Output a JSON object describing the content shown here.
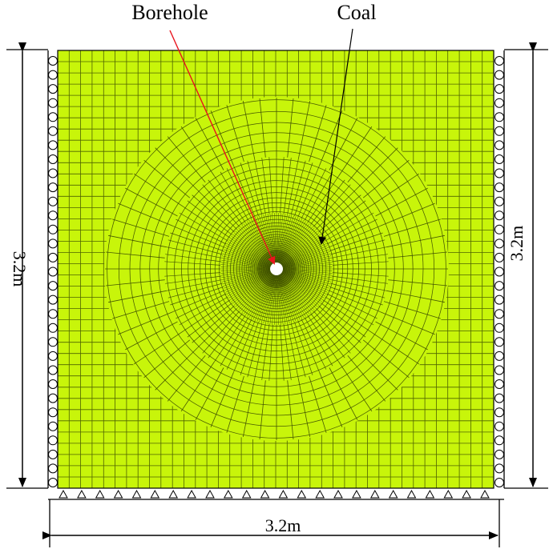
{
  "labels": {
    "borehole": "Borehole",
    "coal": "Coal",
    "left_dim": "3.2m",
    "right_dim": "3.2m",
    "bottom_dim": "3.2m"
  },
  "colors": {
    "mesh_fill": "#c8f50a",
    "mesh_line": "#3a4a00",
    "borehole_arrow": "#e8141e",
    "coal_arrow": "#000000",
    "hole": "#ffffff"
  },
  "supports": {
    "left_rollers": 31,
    "right_rollers": 31,
    "bottom_pins": 24
  }
}
